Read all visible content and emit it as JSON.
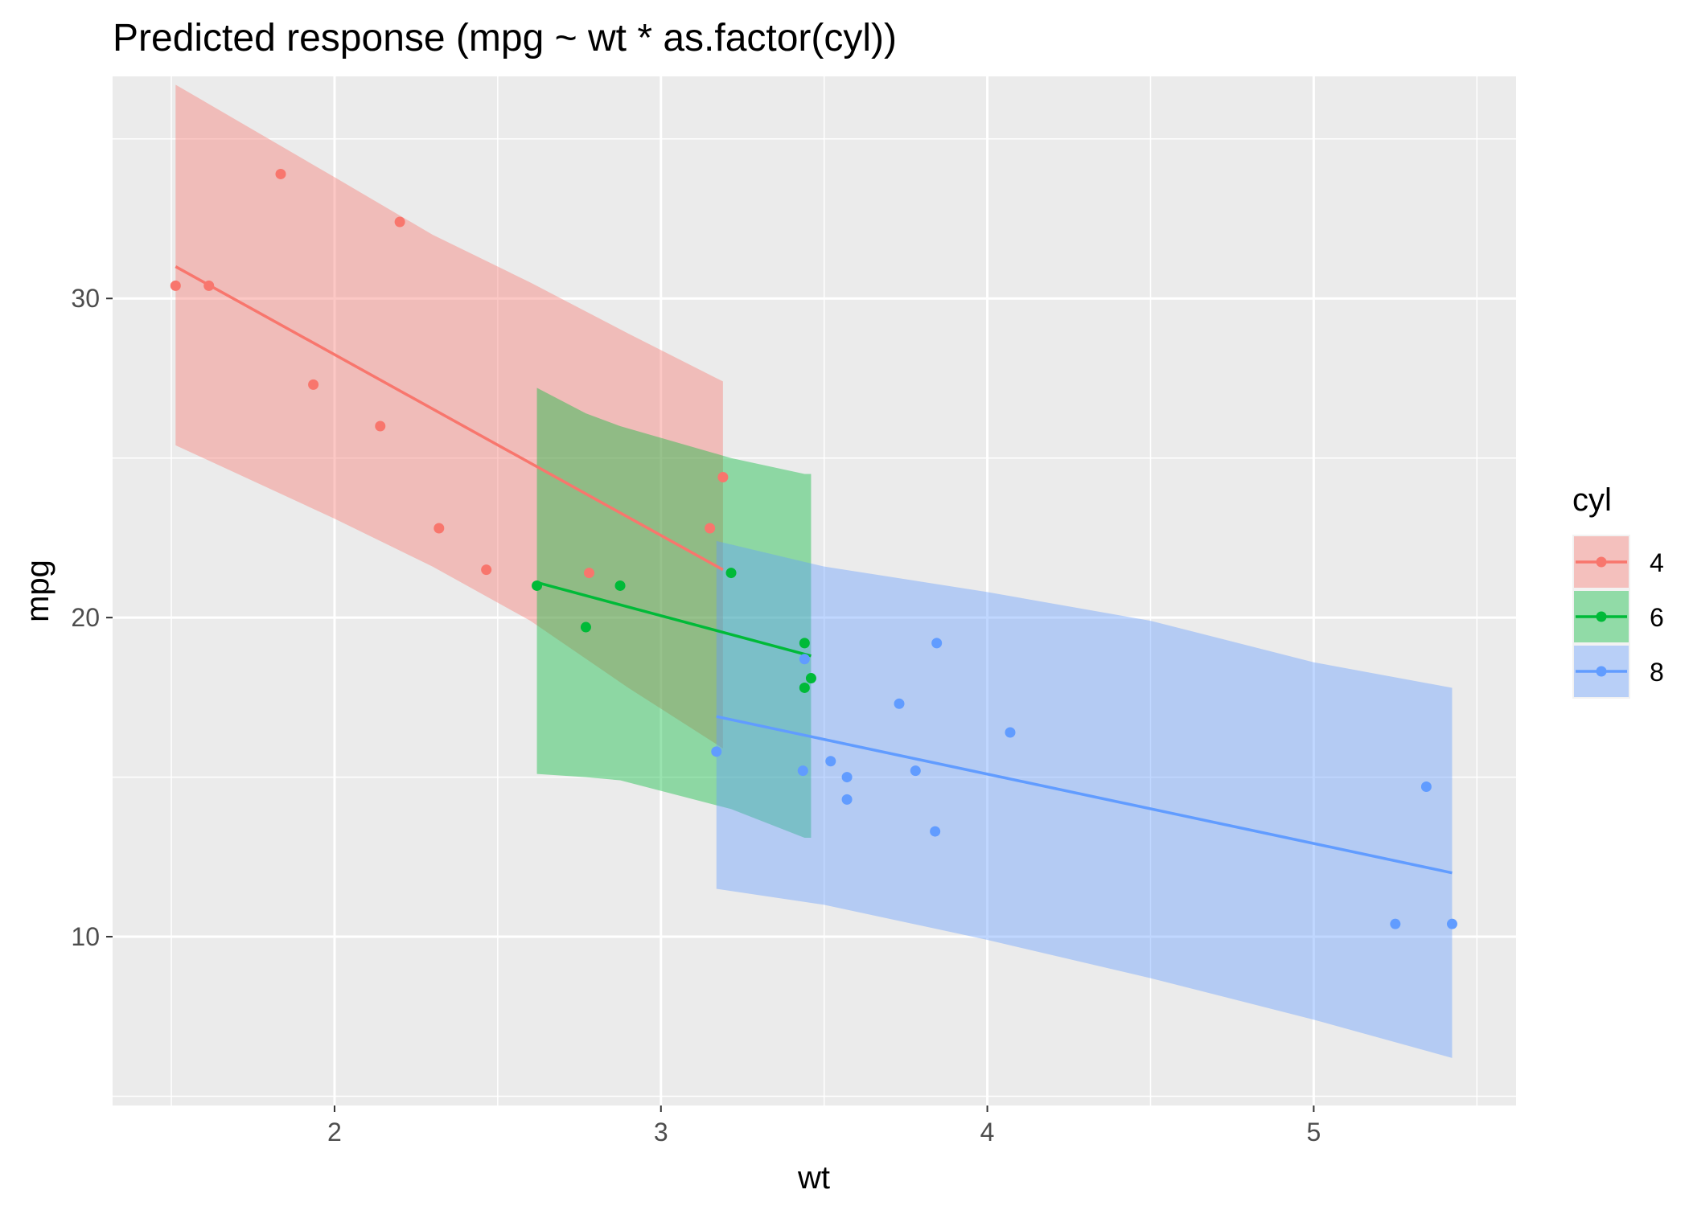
{
  "chart_data": {
    "type": "scatter",
    "title": "Predicted response (mpg ~ wt * as.factor(cyl))",
    "xlabel": "wt",
    "ylabel": "mpg",
    "xlim": [
      1.32,
      5.62
    ],
    "ylim": [
      4.71,
      36.96
    ],
    "x_ticks": [
      2,
      3,
      4,
      5
    ],
    "y_ticks": [
      10,
      20,
      30
    ],
    "x_tick_labels": [
      "2",
      "3",
      "4",
      "5"
    ],
    "y_tick_labels": [
      "10",
      "20",
      "30"
    ],
    "grid": true,
    "legend": {
      "title": "cyl",
      "position": "right"
    },
    "series": [
      {
        "name": "4",
        "color": "#F8766D",
        "points": [
          {
            "x": 1.513,
            "y": 30.4
          },
          {
            "x": 1.615,
            "y": 30.4
          },
          {
            "x": 1.835,
            "y": 33.9
          },
          {
            "x": 1.935,
            "y": 27.3
          },
          {
            "x": 2.14,
            "y": 26.0
          },
          {
            "x": 2.2,
            "y": 32.4
          },
          {
            "x": 2.32,
            "y": 22.8
          },
          {
            "x": 2.465,
            "y": 21.5
          },
          {
            "x": 2.78,
            "y": 21.4
          },
          {
            "x": 3.15,
            "y": 22.8
          },
          {
            "x": 3.19,
            "y": 24.4
          }
        ],
        "fit": [
          {
            "x": 1.513,
            "y": 31.0
          },
          {
            "x": 3.19,
            "y": 21.5
          }
        ],
        "band": [
          {
            "x": 1.513,
            "lower": 25.4,
            "upper": 36.7
          },
          {
            "x": 2.0,
            "lower": 23.1,
            "upper": 33.8
          },
          {
            "x": 2.3,
            "lower": 21.6,
            "upper": 32.0
          },
          {
            "x": 2.6,
            "lower": 19.9,
            "upper": 30.5
          },
          {
            "x": 2.9,
            "lower": 17.8,
            "upper": 28.9
          },
          {
            "x": 3.19,
            "lower": 15.9,
            "upper": 27.4
          }
        ]
      },
      {
        "name": "6",
        "color": "#00BA38",
        "points": [
          {
            "x": 2.62,
            "y": 21.0
          },
          {
            "x": 2.77,
            "y": 19.7
          },
          {
            "x": 2.875,
            "y": 21.0
          },
          {
            "x": 3.215,
            "y": 21.4
          },
          {
            "x": 3.44,
            "y": 19.2
          },
          {
            "x": 3.44,
            "y": 17.8
          },
          {
            "x": 3.46,
            "y": 18.1
          }
        ],
        "fit": [
          {
            "x": 2.62,
            "y": 21.1
          },
          {
            "x": 3.46,
            "y": 18.8
          }
        ],
        "band": [
          {
            "x": 2.62,
            "lower": 15.1,
            "upper": 27.2
          },
          {
            "x": 2.77,
            "lower": 15.0,
            "upper": 26.4
          },
          {
            "x": 2.875,
            "lower": 14.9,
            "upper": 26.0
          },
          {
            "x": 3.215,
            "lower": 14.0,
            "upper": 25.0
          },
          {
            "x": 3.44,
            "lower": 13.1,
            "upper": 24.5
          },
          {
            "x": 3.46,
            "lower": 13.1,
            "upper": 24.5
          }
        ]
      },
      {
        "name": "8",
        "color": "#619CFF",
        "points": [
          {
            "x": 3.17,
            "y": 15.8
          },
          {
            "x": 3.435,
            "y": 15.2
          },
          {
            "x": 3.44,
            "y": 18.7
          },
          {
            "x": 3.52,
            "y": 15.5
          },
          {
            "x": 3.57,
            "y": 14.3
          },
          {
            "x": 3.57,
            "y": 15.0
          },
          {
            "x": 3.73,
            "y": 17.3
          },
          {
            "x": 3.78,
            "y": 15.2
          },
          {
            "x": 3.84,
            "y": 13.3
          },
          {
            "x": 3.845,
            "y": 19.2
          },
          {
            "x": 4.07,
            "y": 16.4
          },
          {
            "x": 5.25,
            "y": 10.4
          },
          {
            "x": 5.345,
            "y": 14.7
          },
          {
            "x": 5.424,
            "y": 10.4
          }
        ],
        "fit": [
          {
            "x": 3.17,
            "y": 16.9
          },
          {
            "x": 5.424,
            "y": 12.0
          }
        ],
        "band": [
          {
            "x": 3.17,
            "lower": 11.5,
            "upper": 22.4
          },
          {
            "x": 3.5,
            "lower": 11.0,
            "upper": 21.6
          },
          {
            "x": 4.0,
            "lower": 9.9,
            "upper": 20.8
          },
          {
            "x": 4.5,
            "lower": 8.7,
            "upper": 19.9
          },
          {
            "x": 5.0,
            "lower": 7.4,
            "upper": 18.6
          },
          {
            "x": 5.424,
            "lower": 6.2,
            "upper": 17.8
          }
        ]
      }
    ]
  }
}
